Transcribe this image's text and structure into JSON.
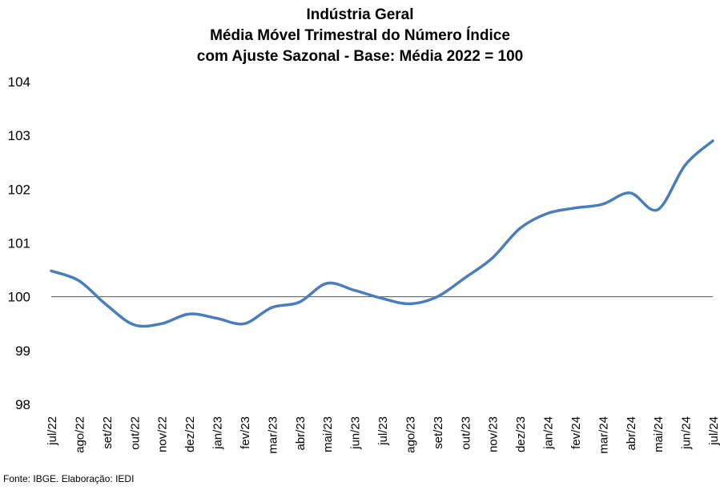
{
  "chart_data": {
    "type": "line",
    "title_lines": [
      "Indústria Geral",
      "Média Móvel Trimestral do Número Índice",
      "com Ajuste Sazonal - Base: Média 2022 = 100"
    ],
    "categories": [
      "jul/22",
      "ago/22",
      "set/22",
      "out/22",
      "nov/22",
      "dez/22",
      "jan/23",
      "fev/23",
      "mar/23",
      "abr/23",
      "mai/23",
      "jun/23",
      "jul/23",
      "ago/23",
      "set/23",
      "out/23",
      "nov/23",
      "dez/23",
      "jan/24",
      "fev/24",
      "mar/24",
      "abr/24",
      "mai/24",
      "jun/24",
      "jul/24"
    ],
    "series": [
      {
        "values": [
          100.48,
          100.3,
          99.85,
          99.48,
          99.5,
          99.68,
          99.6,
          99.5,
          99.8,
          99.9,
          100.25,
          100.12,
          99.97,
          99.87,
          100.0,
          100.35,
          100.72,
          101.27,
          101.55,
          101.65,
          101.72,
          101.93,
          101.62,
          102.45,
          102.9
        ]
      }
    ],
    "ylim": [
      98,
      104
    ],
    "yticks": [
      "98",
      "99",
      "100",
      "101",
      "102",
      "103",
      "104"
    ],
    "reference_line": 100,
    "grid": false,
    "line_color": "#4a7ebb"
  },
  "footer": {
    "source": "Fonte: IBGE. Elaboração: IEDI"
  }
}
